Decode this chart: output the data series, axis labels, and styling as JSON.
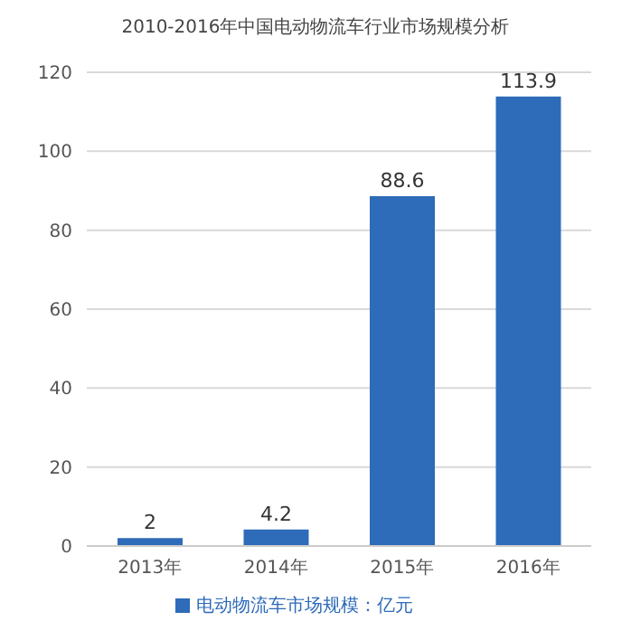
{
  "chart_data": {
    "type": "bar",
    "title": "2010-2016年中国电动物流车行业市场规模分析",
    "categories": [
      "2013年",
      "2014年",
      "2015年",
      "2016年"
    ],
    "series": [
      {
        "name": "电动物流车市场规模：亿元",
        "color": "#2e6bb8",
        "values": [
          2,
          4.2,
          88.6,
          113.9
        ]
      }
    ],
    "ylim": [
      0,
      120
    ],
    "yticks": [
      0,
      20,
      40,
      60,
      80,
      100,
      120
    ],
    "grid": "y",
    "legend": "bottom",
    "data_labels": true
  }
}
